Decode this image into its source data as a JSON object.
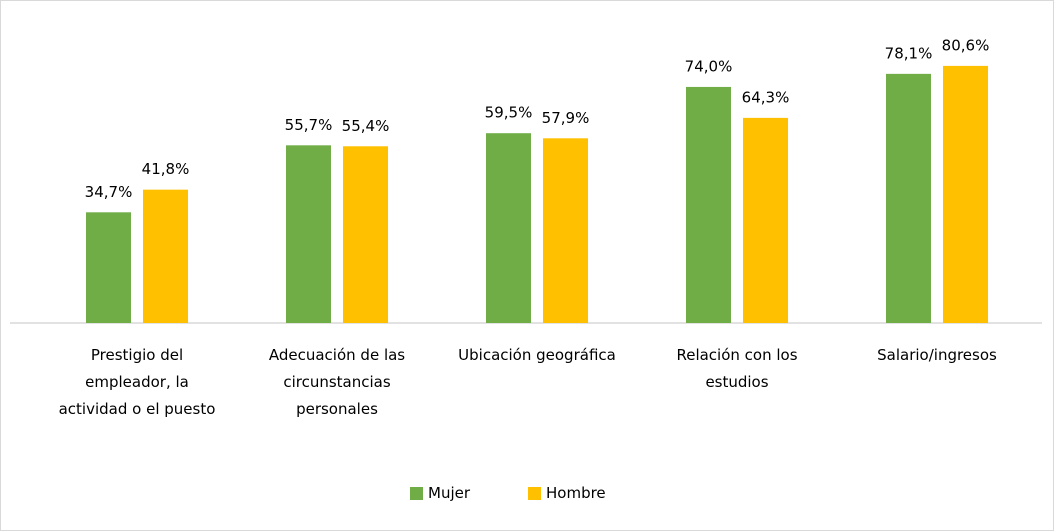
{
  "chart_data": {
    "type": "bar",
    "categories": [
      "Prestigio del empleador, la actividad o el puesto",
      "Adecuación de las circunstancias personales",
      "Ubicación geográfica",
      "Relación con los estudios",
      "Salario/ingresos"
    ],
    "series": [
      {
        "name": "Mujer",
        "color": "#70ad47",
        "values": [
          34.7,
          55.7,
          59.5,
          74.0,
          78.1
        ],
        "value_labels": [
          "34,7%",
          "55,7%",
          "59,5%",
          "74,0%",
          "78,1%"
        ]
      },
      {
        "name": "Hombre",
        "color": "#ffc000",
        "values": [
          41.8,
          55.4,
          57.9,
          64.3,
          80.6
        ],
        "value_labels": [
          "41,8%",
          "55,4%",
          "57,9%",
          "64,3%",
          "80,6%"
        ]
      }
    ],
    "legend": "bottom"
  }
}
